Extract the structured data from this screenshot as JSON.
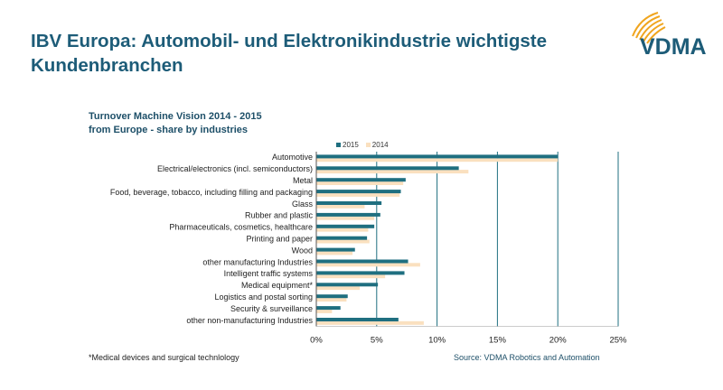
{
  "slide": {
    "title": "IBV Europa: Automobil- und Elektronikindustrie wichtigste Kundenbranchen",
    "logo_text": "VDMA",
    "footnote": "*Medical devices and surgical technlology",
    "source": "Source: VDMA Robotics and Automation"
  },
  "colors": {
    "title": "#1d5c78",
    "series_2015": "#1f6f80",
    "series_2014": "#fae0bf",
    "logo_accent": "#f0a51e",
    "grid": "#1f6f80"
  },
  "chart_data": {
    "type": "bar",
    "orientation": "horizontal",
    "title": "Turnover Machine Vision 2014 - 2015",
    "subtitle": "from Europe - share by industries",
    "categories": [
      "Automotive",
      "Electrical/electronics (incl. semiconductors)",
      "Metal",
      "Food, beverage, tobacco, including filling and packaging",
      "Glass",
      "Rubber and plastic",
      "Pharmaceuticals, cosmetics, healthcare",
      "Printing and paper",
      "Wood",
      "other manufacturing Industries",
      "Intelligent traffic systems",
      "Medical equipment*",
      "Logistics and postal sorting",
      "Security & surveillance",
      "other non-manufacturing Industries"
    ],
    "series": [
      {
        "name": "2015",
        "values": [
          20.0,
          11.8,
          7.4,
          7.0,
          5.4,
          5.3,
          4.8,
          4.2,
          3.2,
          7.6,
          7.3,
          5.1,
          2.6,
          2.0,
          6.8
        ]
      },
      {
        "name": "2014",
        "values": [
          20.0,
          12.6,
          7.2,
          6.9,
          4.0,
          4.8,
          4.3,
          4.4,
          3.0,
          8.6,
          5.7,
          3.6,
          2.5,
          1.3,
          8.9
        ]
      }
    ],
    "xlim": [
      0,
      25
    ],
    "xticks": [
      "0%",
      "5%",
      "10%",
      "15%",
      "20%",
      "25%"
    ],
    "xtick_values": [
      0,
      5,
      10,
      15,
      20,
      25
    ],
    "grid": true,
    "legend_position": "top"
  }
}
